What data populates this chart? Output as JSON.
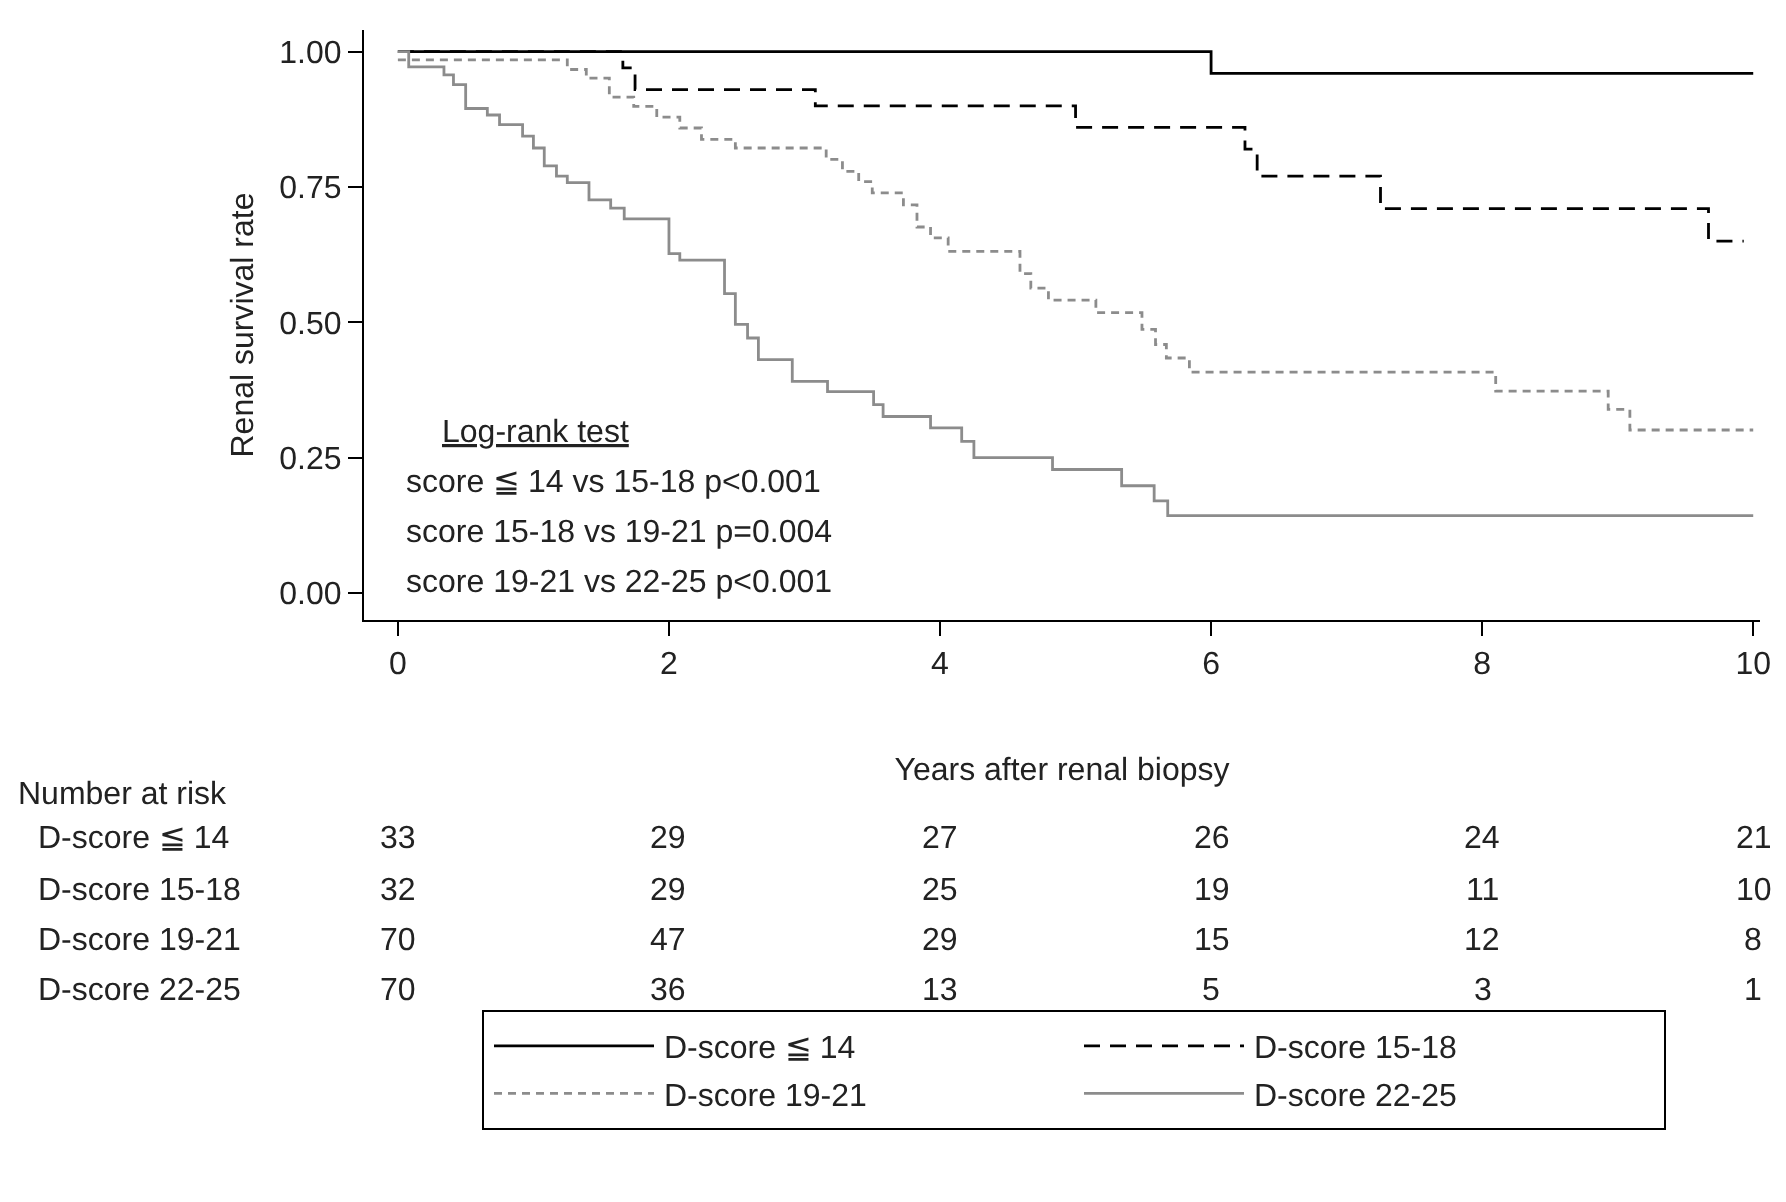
{
  "chart_data": {
    "type": "step",
    "xlabel": "Years after renal biopsy",
    "ylabel": "Renal survival rate",
    "xlim": [
      -0.25,
      10.05
    ],
    "xticks": [
      0,
      2,
      4,
      6,
      8,
      10
    ],
    "ylim": [
      -0.05,
      1.04
    ],
    "yticks": [
      {
        "value": 0,
        "label": "0.00"
      },
      {
        "value": 0.25,
        "label": "0.25"
      },
      {
        "value": 0.5,
        "label": "0.50"
      },
      {
        "value": 0.75,
        "label": "0.75"
      },
      {
        "value": 1,
        "label": "1.00"
      }
    ],
    "legend": "bottom",
    "marker": "none",
    "series": [
      {
        "name": "D-score ≦ 14",
        "color": "#000000",
        "line_style": "solid",
        "x": [
          0,
          6.0,
          10
        ],
        "values": [
          1,
          0.96,
          0.96
        ]
      },
      {
        "name": "D-score 15-18",
        "color": "#000000",
        "line_style": "dashed",
        "x": [
          0,
          1.66,
          1.75,
          3.08,
          5.0,
          6.25,
          6.34,
          7.25,
          9.67,
          9.93
        ],
        "values": [
          1,
          0.97,
          0.93,
          0.9,
          0.86,
          0.82,
          0.77,
          0.71,
          0.65,
          0.65
        ]
      },
      {
        "name": "D-score 19-21",
        "color": "#8c8c8c",
        "line_style": "dotted",
        "x": [
          0,
          1.25,
          1.39,
          1.56,
          1.74,
          1.91,
          2.08,
          2.24,
          2.49,
          3.16,
          3.28,
          3.4,
          3.5,
          3.73,
          3.83,
          3.93,
          4.06,
          4.59,
          4.67,
          4.8,
          5.15,
          5.49,
          5.59,
          5.67,
          5.84,
          8.1,
          8.93,
          9.09,
          10
        ],
        "values": [
          0.985,
          0.967,
          0.951,
          0.916,
          0.899,
          0.879,
          0.859,
          0.838,
          0.822,
          0.801,
          0.779,
          0.76,
          0.739,
          0.717,
          0.676,
          0.656,
          0.631,
          0.59,
          0.563,
          0.541,
          0.518,
          0.487,
          0.459,
          0.434,
          0.408,
          0.373,
          0.339,
          0.301,
          0.301
        ]
      },
      {
        "name": "D-score 22-25",
        "color": "#8c8c8c",
        "line_style": "solid",
        "x": [
          0,
          0.08,
          0.34,
          0.41,
          0.5,
          0.66,
          0.75,
          0.92,
          1.0,
          1.08,
          1.17,
          1.25,
          1.41,
          1.57,
          1.67,
          2.0,
          2.08,
          2.41,
          2.49,
          2.58,
          2.66,
          2.91,
          3.17,
          3.51,
          3.58,
          3.93,
          4.16,
          4.25,
          4.83,
          5.34,
          5.58,
          5.68,
          10
        ],
        "values": [
          1,
          0.972,
          0.957,
          0.939,
          0.895,
          0.883,
          0.865,
          0.844,
          0.822,
          0.789,
          0.77,
          0.758,
          0.726,
          0.711,
          0.691,
          0.627,
          0.615,
          0.553,
          0.496,
          0.471,
          0.431,
          0.391,
          0.372,
          0.348,
          0.326,
          0.305,
          0.28,
          0.25,
          0.228,
          0.198,
          0.17,
          0.143,
          0.143
        ]
      }
    ],
    "annotations": [
      "Log-rank test",
      "score ≦ 14 vs 15-18 p<0.001",
      "score 15-18 vs 19-21 p=0.004",
      "score 19-21 vs 22-25 p<0.001",
      "Number at risk",
      "D-score ≦ 14",
      "33",
      "29",
      "27",
      "26",
      "24",
      "21",
      "D-score 15-18",
      "32",
      "29",
      "25",
      "19",
      "11",
      "10",
      "D-score 19-21",
      "70",
      "47",
      "29",
      "15",
      "12",
      "8",
      "D-score 22-25",
      "70",
      "36",
      "13",
      "5",
      "3",
      "1"
    ]
  }
}
